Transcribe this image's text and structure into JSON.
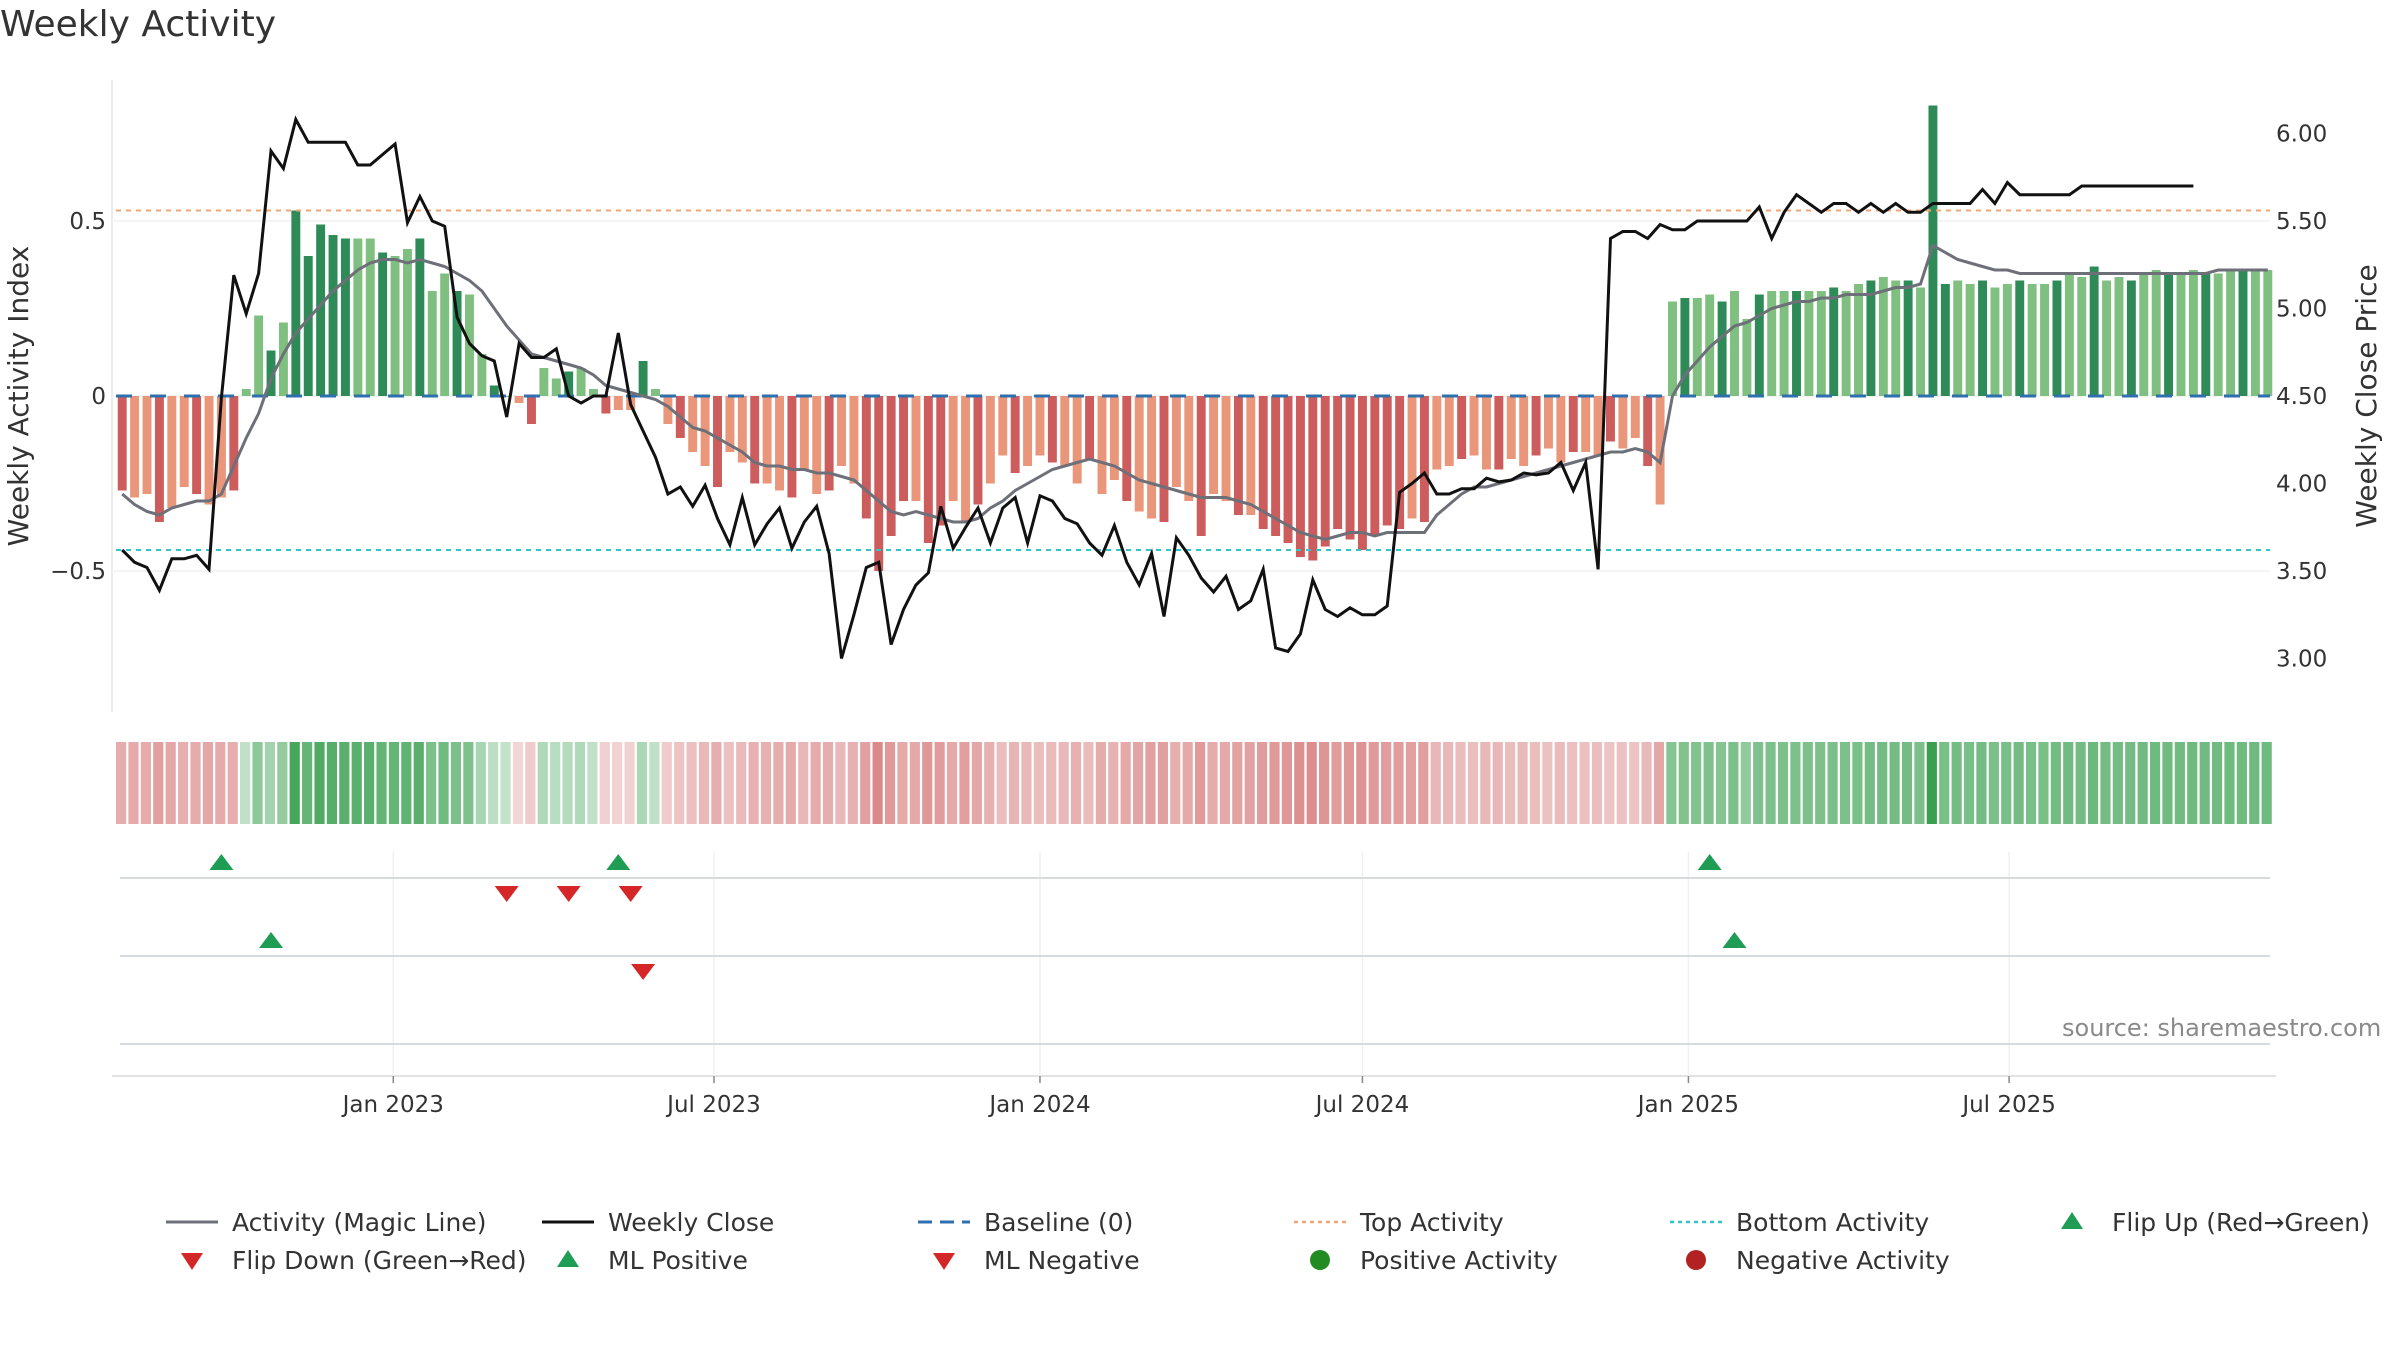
{
  "title": "Weekly Activity",
  "source": "source: sharemaestro.com",
  "colors": {
    "magic_line": "#6e7079",
    "close": "#111111",
    "baseline": "#2e6fae",
    "top": "#f0a673",
    "bottom": "#2ec7c9",
    "pos_dark": "#2e8b57",
    "pos_light": "#7fbf7f",
    "neg_dark": "#cd5c5c",
    "neg_light": "#e9967a",
    "flip_up": "#1f9d55",
    "flip_down": "#d62728",
    "pos_dot": "#228b22",
    "neg_dot": "#b22222"
  },
  "chart_data": {
    "type": "bar",
    "title": "Weekly Activity",
    "ylabel_left": "Weekly Activity Index",
    "ylabel_right": "Weekly Close Price",
    "left_ticks": [
      {
        "v": 0.5,
        "label": "0.5"
      },
      {
        "v": 0,
        "label": "0"
      },
      {
        "v": -0.5,
        "label": "−0.5"
      }
    ],
    "right_ticks": [
      "6.00",
      "5.50",
      "5.00",
      "4.50",
      "4.00",
      "3.50",
      "3.00"
    ],
    "ylim_left": [
      -0.9,
      0.9
    ],
    "ylim_right": [
      2.7,
      6.3
    ],
    "x_ticks": [
      "Jan 2023",
      "Jul 2023",
      "Jan 2024",
      "Jul 2024",
      "Jan 2025",
      "Jul 2025"
    ],
    "start_week": "2022-08-01",
    "top_activity": 0.53,
    "bottom_activity": -0.44,
    "baseline": 0,
    "activity": [
      -0.27,
      -0.29,
      -0.28,
      -0.36,
      -0.32,
      -0.26,
      -0.28,
      -0.31,
      -0.29,
      -0.27,
      0.02,
      0.23,
      0.13,
      0.21,
      0.53,
      0.4,
      0.49,
      0.46,
      0.45,
      0.45,
      0.45,
      0.41,
      0.4,
      0.42,
      0.45,
      0.3,
      0.35,
      0.3,
      0.29,
      0.12,
      0.03,
      0.0,
      -0.02,
      -0.08,
      0.08,
      0.05,
      0.07,
      0.08,
      0.02,
      -0.05,
      -0.04,
      -0.04,
      0.1,
      0.02,
      -0.08,
      -0.12,
      -0.16,
      -0.2,
      -0.26,
      -0.16,
      -0.19,
      -0.25,
      -0.25,
      -0.27,
      -0.29,
      -0.21,
      -0.28,
      -0.27,
      -0.2,
      -0.25,
      -0.35,
      -0.5,
      -0.4,
      -0.3,
      -0.3,
      -0.42,
      -0.37,
      -0.3,
      -0.36,
      -0.31,
      -0.25,
      -0.17,
      -0.22,
      -0.2,
      -0.17,
      -0.19,
      -0.2,
      -0.25,
      -0.18,
      -0.28,
      -0.24,
      -0.3,
      -0.33,
      -0.35,
      -0.36,
      -0.26,
      -0.3,
      -0.4,
      -0.28,
      -0.3,
      -0.34,
      -0.34,
      -0.38,
      -0.4,
      -0.42,
      -0.46,
      -0.47,
      -0.43,
      -0.38,
      -0.41,
      -0.44,
      -0.4,
      -0.37,
      -0.38,
      -0.35,
      -0.36,
      -0.21,
      -0.2,
      -0.18,
      -0.17,
      -0.21,
      -0.21,
      -0.18,
      -0.2,
      -0.17,
      -0.15,
      -0.19,
      -0.16,
      -0.16,
      -0.17,
      -0.13,
      -0.15,
      -0.12,
      -0.2,
      -0.31,
      0.27,
      0.28,
      0.28,
      0.29,
      0.27,
      0.3,
      0.22,
      0.29,
      0.3,
      0.3,
      0.3,
      0.3,
      0.3,
      0.31,
      0.3,
      0.32,
      0.33,
      0.34,
      0.33,
      0.33,
      0.31,
      0.83,
      0.32,
      0.33,
      0.32,
      0.33,
      0.31,
      0.32,
      0.33,
      0.32,
      0.32,
      0.33,
      0.35,
      0.34,
      0.37,
      0.33,
      0.34,
      0.33,
      0.35,
      0.36,
      0.35,
      0.35,
      0.36,
      0.35,
      0.35,
      0.36,
      0.36,
      0.36,
      0.36
    ],
    "magic_line": [
      -0.28,
      -0.31,
      -0.33,
      -0.34,
      -0.32,
      -0.31,
      -0.3,
      -0.3,
      -0.28,
      -0.2,
      -0.12,
      -0.05,
      0.05,
      0.12,
      0.18,
      0.22,
      0.26,
      0.3,
      0.33,
      0.36,
      0.38,
      0.39,
      0.39,
      0.38,
      0.39,
      0.38,
      0.37,
      0.35,
      0.33,
      0.3,
      0.25,
      0.2,
      0.16,
      0.12,
      0.11,
      0.1,
      0.09,
      0.08,
      0.06,
      0.03,
      0.02,
      0.01,
      0.0,
      -0.01,
      -0.03,
      -0.06,
      -0.09,
      -0.1,
      -0.12,
      -0.14,
      -0.16,
      -0.19,
      -0.2,
      -0.2,
      -0.21,
      -0.21,
      -0.22,
      -0.22,
      -0.23,
      -0.24,
      -0.27,
      -0.3,
      -0.33,
      -0.34,
      -0.33,
      -0.34,
      -0.35,
      -0.36,
      -0.36,
      -0.35,
      -0.32,
      -0.3,
      -0.27,
      -0.25,
      -0.23,
      -0.21,
      -0.2,
      -0.19,
      -0.18,
      -0.19,
      -0.2,
      -0.22,
      -0.24,
      -0.25,
      -0.26,
      -0.27,
      -0.28,
      -0.29,
      -0.29,
      -0.29,
      -0.3,
      -0.31,
      -0.33,
      -0.35,
      -0.37,
      -0.39,
      -0.4,
      -0.41,
      -0.4,
      -0.39,
      -0.39,
      -0.4,
      -0.39,
      -0.39,
      -0.39,
      -0.39,
      -0.34,
      -0.31,
      -0.28,
      -0.26,
      -0.26,
      -0.25,
      -0.24,
      -0.23,
      -0.22,
      -0.21,
      -0.2,
      -0.19,
      -0.18,
      -0.17,
      -0.16,
      -0.16,
      -0.15,
      -0.16,
      -0.19,
      0.0,
      0.06,
      0.1,
      0.14,
      0.17,
      0.2,
      0.21,
      0.23,
      0.25,
      0.26,
      0.27,
      0.27,
      0.28,
      0.28,
      0.29,
      0.29,
      0.29,
      0.3,
      0.31,
      0.31,
      0.32,
      0.43,
      0.41,
      0.39,
      0.38,
      0.37,
      0.36,
      0.36,
      0.35,
      0.35,
      0.35,
      0.35,
      0.35,
      0.35,
      0.35,
      0.35,
      0.35,
      0.35,
      0.35,
      0.35,
      0.35,
      0.35,
      0.35,
      0.35,
      0.36,
      0.36,
      0.36,
      0.36,
      0.36
    ],
    "close": [
      3.62,
      3.55,
      3.52,
      3.39,
      3.57,
      3.57,
      3.59,
      3.51,
      4.49,
      5.19,
      4.97,
      5.2,
      5.9,
      5.8,
      6.08,
      5.95,
      5.95,
      5.95,
      5.95,
      5.82,
      5.82,
      5.88,
      5.94,
      5.49,
      5.64,
      5.5,
      5.47,
      4.95,
      4.8,
      4.73,
      4.7,
      4.38,
      4.8,
      4.72,
      4.72,
      4.77,
      4.5,
      4.46,
      4.5,
      4.5,
      4.86,
      4.45,
      4.3,
      4.15,
      3.94,
      3.98,
      3.87,
      3.99,
      3.8,
      3.65,
      3.92,
      3.65,
      3.77,
      3.86,
      3.63,
      3.78,
      3.87,
      3.6,
      3.0,
      3.25,
      3.52,
      3.55,
      3.08,
      3.28,
      3.42,
      3.49,
      3.87,
      3.63,
      3.75,
      3.86,
      3.66,
      3.86,
      3.92,
      3.66,
      3.93,
      3.9,
      3.8,
      3.77,
      3.66,
      3.59,
      3.76,
      3.55,
      3.42,
      3.6,
      3.24,
      3.69,
      3.59,
      3.46,
      3.38,
      3.47,
      3.28,
      3.33,
      3.51,
      3.06,
      3.04,
      3.14,
      3.45,
      3.28,
      3.24,
      3.29,
      3.25,
      3.25,
      3.3,
      3.95,
      4.0,
      4.06,
      3.94,
      3.94,
      3.97,
      3.97,
      4.03,
      4.01,
      4.02,
      4.06,
      4.05,
      4.06,
      4.12,
      3.96,
      4.12,
      3.51,
      5.4,
      5.44,
      5.44,
      5.4,
      5.48,
      5.45,
      5.45,
      5.5,
      5.5,
      5.5,
      5.5,
      5.5,
      5.58,
      5.4,
      5.55,
      5.65,
      5.6,
      5.55,
      5.6,
      5.6,
      5.55,
      5.6,
      5.55,
      5.6,
      5.55,
      5.55,
      5.6,
      5.6,
      5.6,
      5.6,
      5.68,
      5.6,
      5.72,
      5.65,
      5.65,
      5.65,
      5.65,
      5.65,
      5.7,
      5.7,
      5.7,
      5.7,
      5.7,
      5.7,
      5.7,
      5.7,
      5.7,
      5.7
    ],
    "flip_up_weeks": [
      8,
      40,
      128
    ],
    "flip_down_weeks": [
      31,
      36,
      41
    ],
    "ml_positive_weeks": [
      12,
      130
    ],
    "ml_negative_weeks": [
      42
    ]
  },
  "legend": [
    {
      "key": "magic",
      "label": "Activity (Magic Line)"
    },
    {
      "key": "close",
      "label": "Weekly Close"
    },
    {
      "key": "baseline",
      "label": "Baseline (0)"
    },
    {
      "key": "top",
      "label": "Top Activity"
    },
    {
      "key": "bottom",
      "label": "Bottom Activity"
    },
    {
      "key": "flip_up",
      "label": "Flip Up (Red→Green)"
    },
    {
      "key": "flip_down",
      "label": "Flip Down (Green→Red)"
    },
    {
      "key": "ml_pos",
      "label": "ML Positive"
    },
    {
      "key": "ml_neg",
      "label": "ML Negative"
    },
    {
      "key": "pos_act",
      "label": "Positive Activity"
    },
    {
      "key": "neg_act",
      "label": "Negative Activity"
    }
  ]
}
